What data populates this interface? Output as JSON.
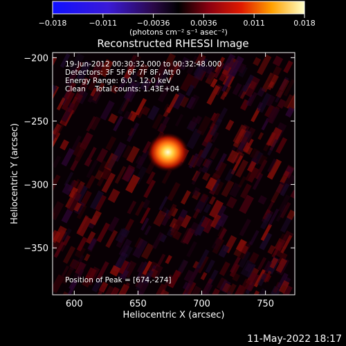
{
  "colorbar": {
    "ticks": [
      "−0.018",
      "−0.011",
      "−0.0036",
      "0.0036",
      "0.011",
      "0.018"
    ],
    "units": "(photons cm⁻² s⁻¹ asec⁻²)"
  },
  "header": {
    "title": "Reconstructed RHESSI Image"
  },
  "info": {
    "time": "19-Jun-2012 00:30:32.000 to 00:32:48.000",
    "detectors": "Detectors: 3F 5F 6F 7F 8F, Att 0",
    "energy": "Energy Range: 6.0 - 12.0 keV",
    "clean": "Clean    Total counts: 1.43E+04",
    "peak": "Position of Peak = [674,-274]"
  },
  "footer": {
    "timestamp": "11-May-2022 18:17"
  },
  "colors": {
    "background": "#000000",
    "text": "#ffffff"
  },
  "chart_data": {
    "type": "heatmap",
    "title": "Reconstructed RHESSI Image",
    "xlabel": "Heliocentric X (arcsec)",
    "ylabel": "Heliocentric Y (arcsec)",
    "xlim": [
      583,
      773
    ],
    "ylim": [
      -387,
      -196
    ],
    "xticks": [
      600,
      650,
      700,
      750
    ],
    "xtick_labels": [
      "600",
      "650",
      "700",
      "750"
    ],
    "yticks": [
      -200,
      -250,
      -300,
      -350
    ],
    "ytick_labels": [
      "−200",
      "−250",
      "−300",
      "−350"
    ],
    "colorbar_range": [
      -0.018,
      0.018
    ],
    "peak": {
      "x": 674,
      "y": -274
    },
    "units": "photons cm^-2 s^-1 asec^-2"
  }
}
